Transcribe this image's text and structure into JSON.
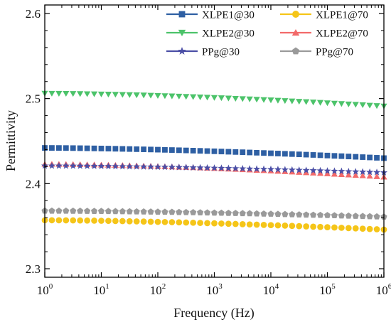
{
  "chart_data": {
    "type": "scatter",
    "xscale": "log",
    "xlim": [
      1,
      1000000
    ],
    "ylim": [
      2.29,
      2.61
    ],
    "xlabel": "Frequency (Hz)",
    "ylabel": "Permittivity",
    "x_ticks": [
      {
        "base": "10",
        "exp": "0"
      },
      {
        "base": "10",
        "exp": "1"
      },
      {
        "base": "10",
        "exp": "2"
      },
      {
        "base": "10",
        "exp": "3"
      },
      {
        "base": "10",
        "exp": "4"
      },
      {
        "base": "10",
        "exp": "5"
      },
      {
        "base": "10",
        "exp": "6"
      }
    ],
    "y_ticks": [
      "2.3",
      "2.4",
      "2.5",
      "2.6"
    ],
    "grid": false,
    "legend_position": "top-right",
    "series": [
      {
        "name": "XLPE1@30",
        "color": "#2e5fa3",
        "marker": "square",
        "y_start": 2.442,
        "y_end": 2.43
      },
      {
        "name": "XLPE1@70",
        "color": "#f5c518",
        "marker": "circle",
        "y_start": 2.357,
        "y_end": 2.346
      },
      {
        "name": "XLPE2@30",
        "color": "#4cc36a",
        "marker": "triangle-down",
        "y_start": 2.506,
        "y_end": 2.491
      },
      {
        "name": "XLPE2@70",
        "color": "#f26a6a",
        "marker": "triangle-up",
        "y_start": 2.423,
        "y_end": 2.408
      },
      {
        "name": "PPg@30",
        "color": "#4b4fa6",
        "marker": "star",
        "y_start": 2.421,
        "y_end": 2.413
      },
      {
        "name": "PPg@70",
        "color": "#9a9a9a",
        "marker": "pentagon",
        "y_start": 2.368,
        "y_end": 2.361
      }
    ]
  }
}
